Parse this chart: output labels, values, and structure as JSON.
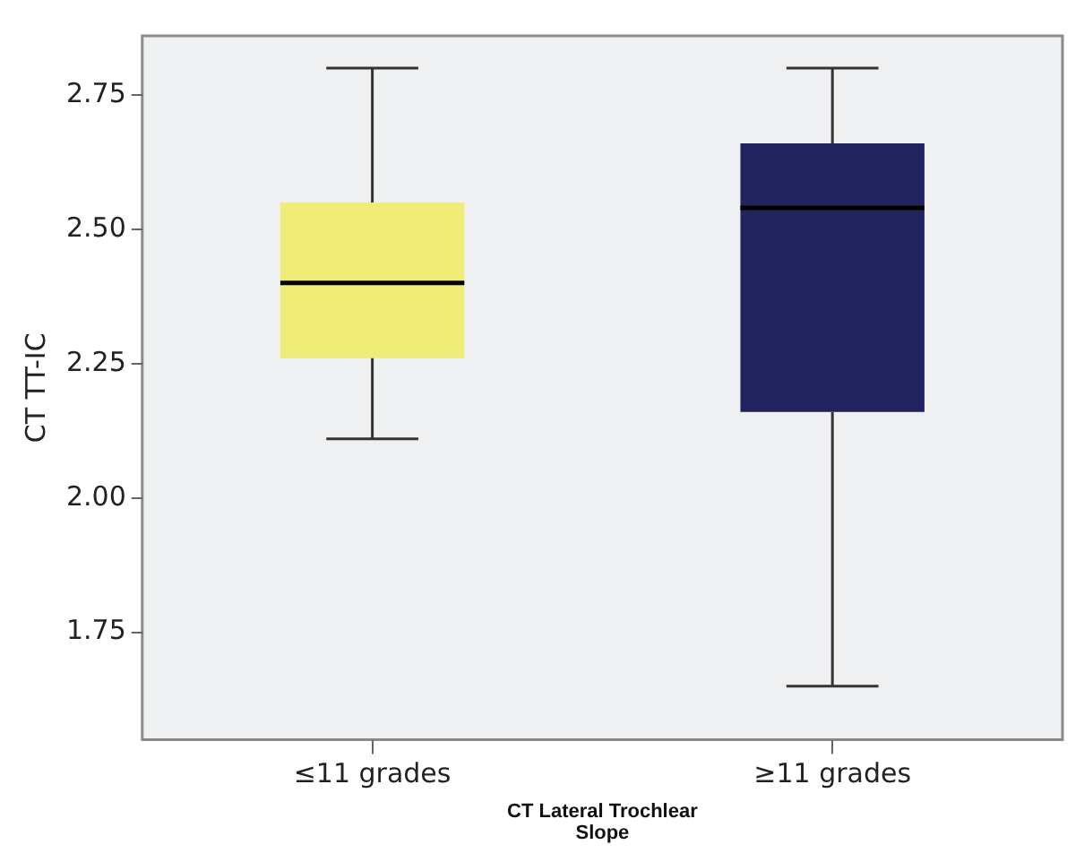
{
  "chart_data": {
    "type": "box",
    "categories": [
      "≤11 grades",
      "≥11 grades"
    ],
    "boxes": [
      {
        "low": 2.11,
        "q1": 2.26,
        "median": 2.4,
        "q3": 2.55,
        "high": 2.8
      },
      {
        "low": 1.65,
        "q1": 2.16,
        "median": 2.54,
        "q3": 2.66,
        "high": 2.8
      }
    ],
    "colors": [
      "#f0ec78",
      "#21225e"
    ],
    "ylabel": "CT TT-IC",
    "xlabel": "CT Lateral Trochlear Slope",
    "ylim": [
      1.55,
      2.86
    ],
    "yticks": [
      {
        "value": 1.75,
        "label": "1.75"
      },
      {
        "value": 2,
        "label": "2.00"
      },
      {
        "value": 2.25,
        "label": "2.25"
      },
      {
        "value": 2.5,
        "label": "2.50"
      },
      {
        "value": 2.75,
        "label": "2.75"
      }
    ],
    "grid": false,
    "legend": false
  }
}
